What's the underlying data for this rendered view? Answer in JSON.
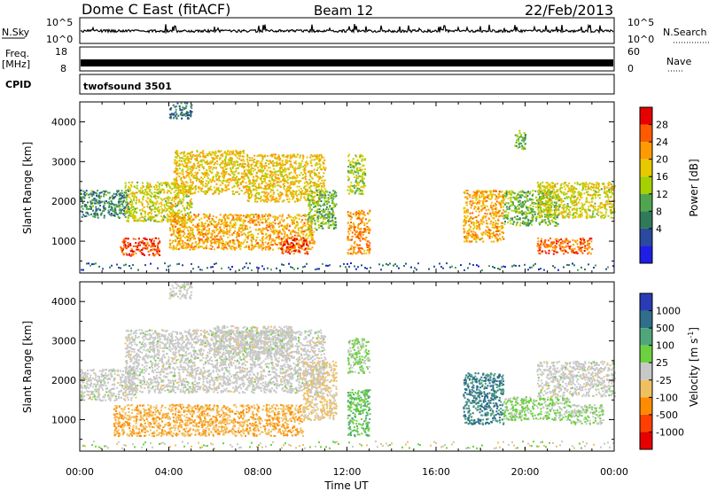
{
  "header": {
    "title": "Dome C East (fitACF)",
    "beam": "Beam 12",
    "date": "22/Feb/2013"
  },
  "strips": {
    "nsky_label": "N.Sky",
    "nsky_ticks": [
      "10^5",
      "10^0"
    ],
    "nsearch_label": "N.Search",
    "nsearch_ticks": [
      "10^5",
      "10^0"
    ],
    "freq_label": "Freq.",
    "freq_unit": "[MHz]",
    "freq_ticks": [
      "18",
      "8"
    ],
    "nave_label": "Nave",
    "nave_ticks": [
      "60",
      "0"
    ],
    "cpid_label": "CPID",
    "cpid_value": "twofsound 3501"
  },
  "axes": {
    "xlabel": "Time UT",
    "x_ticks": [
      "00:00",
      "04:00",
      "08:00",
      "12:00",
      "16:00",
      "20:00",
      "00:00"
    ],
    "ylabel": "Slant Range [km]",
    "y_ticks": [
      "1000",
      "2000",
      "3000",
      "4000"
    ]
  },
  "power_scale": {
    "label": "Power [dB]",
    "ticks": [
      "28",
      "24",
      "20",
      "16",
      "12",
      "8",
      "4"
    ],
    "colors": [
      "#e60000",
      "#ff5a00",
      "#ff9a00",
      "#e8c800",
      "#a6d000",
      "#4fa64f",
      "#2f7a5a",
      "#2a4aa0",
      "#1e1ee6"
    ]
  },
  "velocity_scale": {
    "label": "Velocity",
    "unit": "[m s",
    "unit_exp": "-1",
    "unit_close": "]",
    "ticks": [
      "1000",
      "500",
      "100",
      "25",
      "-25",
      "-100",
      "-500",
      "-1000"
    ],
    "colors": [
      "#2a3cb4",
      "#2f6f8a",
      "#4fa67a",
      "#6cd040",
      "#c8c8c8",
      "#f0c060",
      "#ff8c00",
      "#ff4000",
      "#e60000"
    ]
  },
  "chart_data": [
    {
      "type": "heatmap",
      "title": "",
      "xlabel": "Time UT",
      "ylabel": "Slant Range [km]",
      "xlim": [
        0,
        24
      ],
      "ylim": [
        200,
        4500
      ],
      "colorbar_label": "Power [dB]",
      "clim": [
        0,
        32
      ],
      "blobs": [
        {
          "t": [
            0.0,
            2.2
          ],
          "r": [
            1600,
            2300
          ],
          "v": 10
        },
        {
          "t": [
            1.8,
            3.6
          ],
          "r": [
            650,
            1100
          ],
          "v": 28
        },
        {
          "t": [
            2.0,
            5.0
          ],
          "r": [
            1500,
            2500
          ],
          "v": 18
        },
        {
          "t": [
            4.2,
            7.5
          ],
          "r": [
            2200,
            3300
          ],
          "v": 20
        },
        {
          "t": [
            4.0,
            10.5
          ],
          "r": [
            800,
            1700
          ],
          "v": 22
        },
        {
          "t": [
            7.5,
            11.0
          ],
          "r": [
            2000,
            3200
          ],
          "v": 20
        },
        {
          "t": [
            9.0,
            10.2
          ],
          "r": [
            700,
            1100
          ],
          "v": 28
        },
        {
          "t": [
            10.2,
            11.5
          ],
          "r": [
            1300,
            2300
          ],
          "v": 14
        },
        {
          "t": [
            12.0,
            13.0
          ],
          "r": [
            700,
            1800
          ],
          "v": 24
        },
        {
          "t": [
            12.0,
            12.8
          ],
          "r": [
            2200,
            3200
          ],
          "v": 16
        },
        {
          "t": [
            17.2,
            19.0
          ],
          "r": [
            1000,
            2300
          ],
          "v": 22
        },
        {
          "t": [
            19.0,
            21.5
          ],
          "r": [
            1400,
            2300
          ],
          "v": 14
        },
        {
          "t": [
            20.5,
            24.0
          ],
          "r": [
            1600,
            2500
          ],
          "v": 18
        },
        {
          "t": [
            20.5,
            23.0
          ],
          "r": [
            700,
            1100
          ],
          "v": 26
        },
        {
          "t": [
            19.5,
            20.0
          ],
          "r": [
            3300,
            3800
          ],
          "v": 14
        },
        {
          "t": [
            4.0,
            5.0
          ],
          "r": [
            4100,
            4500
          ],
          "v": 8
        }
      ]
    },
    {
      "type": "heatmap",
      "title": "",
      "xlabel": "Time UT",
      "ylabel": "Slant Range [km]",
      "xlim": [
        0,
        24
      ],
      "ylim": [
        200,
        4500
      ],
      "colorbar_label": "Velocity [m s-1]",
      "clim": [
        -1000,
        1000
      ],
      "blobs": [
        {
          "t": [
            0.0,
            2.5
          ],
          "r": [
            1500,
            2300
          ],
          "v": 0
        },
        {
          "t": [
            1.5,
            10.0
          ],
          "r": [
            600,
            1400
          ],
          "v": -300
        },
        {
          "t": [
            2.0,
            11.0
          ],
          "r": [
            1700,
            3300
          ],
          "v": 0
        },
        {
          "t": [
            6.0,
            9.5
          ],
          "r": [
            2600,
            3400
          ],
          "v": 0
        },
        {
          "t": [
            10.0,
            11.5
          ],
          "r": [
            1000,
            2500
          ],
          "v": -150
        },
        {
          "t": [
            12.0,
            13.0
          ],
          "r": [
            600,
            1800
          ],
          "v": 300
        },
        {
          "t": [
            12.0,
            13.0
          ],
          "r": [
            2200,
            3100
          ],
          "v": 150
        },
        {
          "t": [
            17.2,
            19.0
          ],
          "r": [
            900,
            2200
          ],
          "v": 600
        },
        {
          "t": [
            19.0,
            22.0
          ],
          "r": [
            1000,
            1600
          ],
          "v": 150
        },
        {
          "t": [
            20.5,
            24.0
          ],
          "r": [
            1600,
            2500
          ],
          "v": 0
        },
        {
          "t": [
            22.0,
            23.5
          ],
          "r": [
            900,
            1400
          ],
          "v": 100
        },
        {
          "t": [
            4.0,
            5.0
          ],
          "r": [
            4100,
            4500
          ],
          "v": 0
        }
      ]
    }
  ]
}
